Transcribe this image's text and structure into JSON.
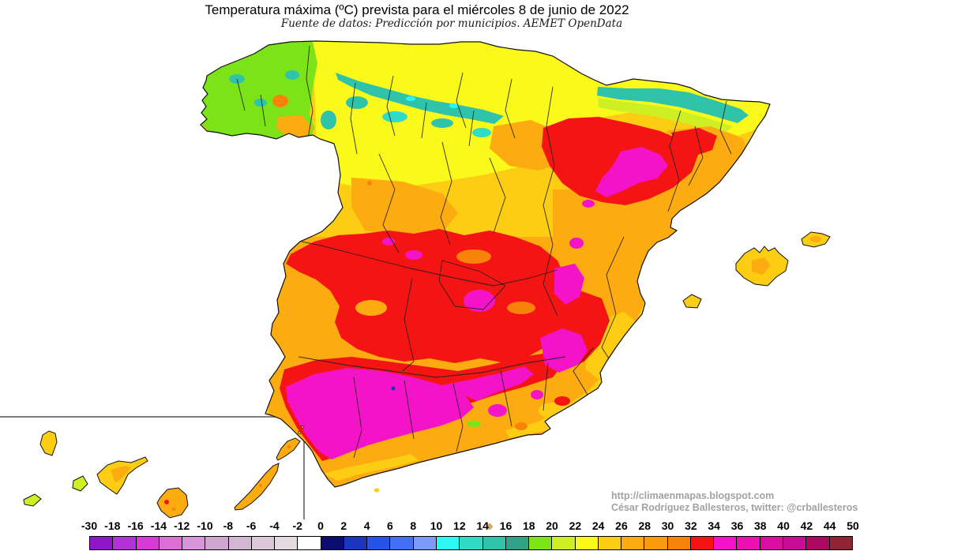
{
  "title": "Temperatura máxima (ºC) prevista para el miércoles 8 de junio de 2022",
  "subtitle": "Fuente de datos: Predicción por municipios. AEMET OpenData",
  "credits": {
    "url": "http://climaenmapas.blogspot.com",
    "author": "César Rodríguez Ballesteros, twitter: @crballesteros"
  },
  "legend": {
    "unit": "ºC",
    "tick_labels": [
      "-30",
      "-18",
      "-16",
      "-14",
      "-12",
      "-10",
      "-8",
      "-6",
      "-4",
      "-2",
      "0",
      "2",
      "4",
      "6",
      "8",
      "10",
      "12",
      "14",
      "16",
      "18",
      "20",
      "22",
      "24",
      "26",
      "28",
      "30",
      "32",
      "34",
      "36",
      "38",
      "40",
      "42",
      "44",
      "50"
    ],
    "colors": [
      "#8E18C6",
      "#B232DA",
      "#D53CD5",
      "#DA70D6",
      "#D894D8",
      "#CFA6CF",
      "#D2B6D2",
      "#DAC8D8",
      "#E2DCE0",
      "#FFFFFF",
      "#0C0C72",
      "#1A35BE",
      "#2553E8",
      "#4470F5",
      "#7E9AF8",
      "#2BF8F2",
      "#30DCC6",
      "#2FC3AB",
      "#31A285",
      "#7BE317",
      "#CDEF24",
      "#FBF81B",
      "#FCCD12",
      "#FCAC10",
      "#FB9A0C",
      "#F8820A",
      "#F41414",
      "#F414C8",
      "#EC12B2",
      "#DA0FA2",
      "#C70D95",
      "#AE0960",
      "#8F2433"
    ]
  },
  "map": {
    "palette": {
      "green": "#7BE317",
      "yellow_green": "#CDEF24",
      "teal": "#2FC3AB",
      "light_teal": "#30DCC6",
      "cyan": "#2BF8F2",
      "yellow": "#FBF81B",
      "gold": "#FCCD12",
      "orange": "#FCAC10",
      "deep_orange": "#F8820A",
      "red": "#F41414",
      "magenta": "#F414C8",
      "dark_blue": "#1A35BE",
      "coast_line": "#111111",
      "province_line": "#1c1c1c",
      "inset_line": "#808080",
      "marker_tan": "#D9A45B"
    }
  }
}
